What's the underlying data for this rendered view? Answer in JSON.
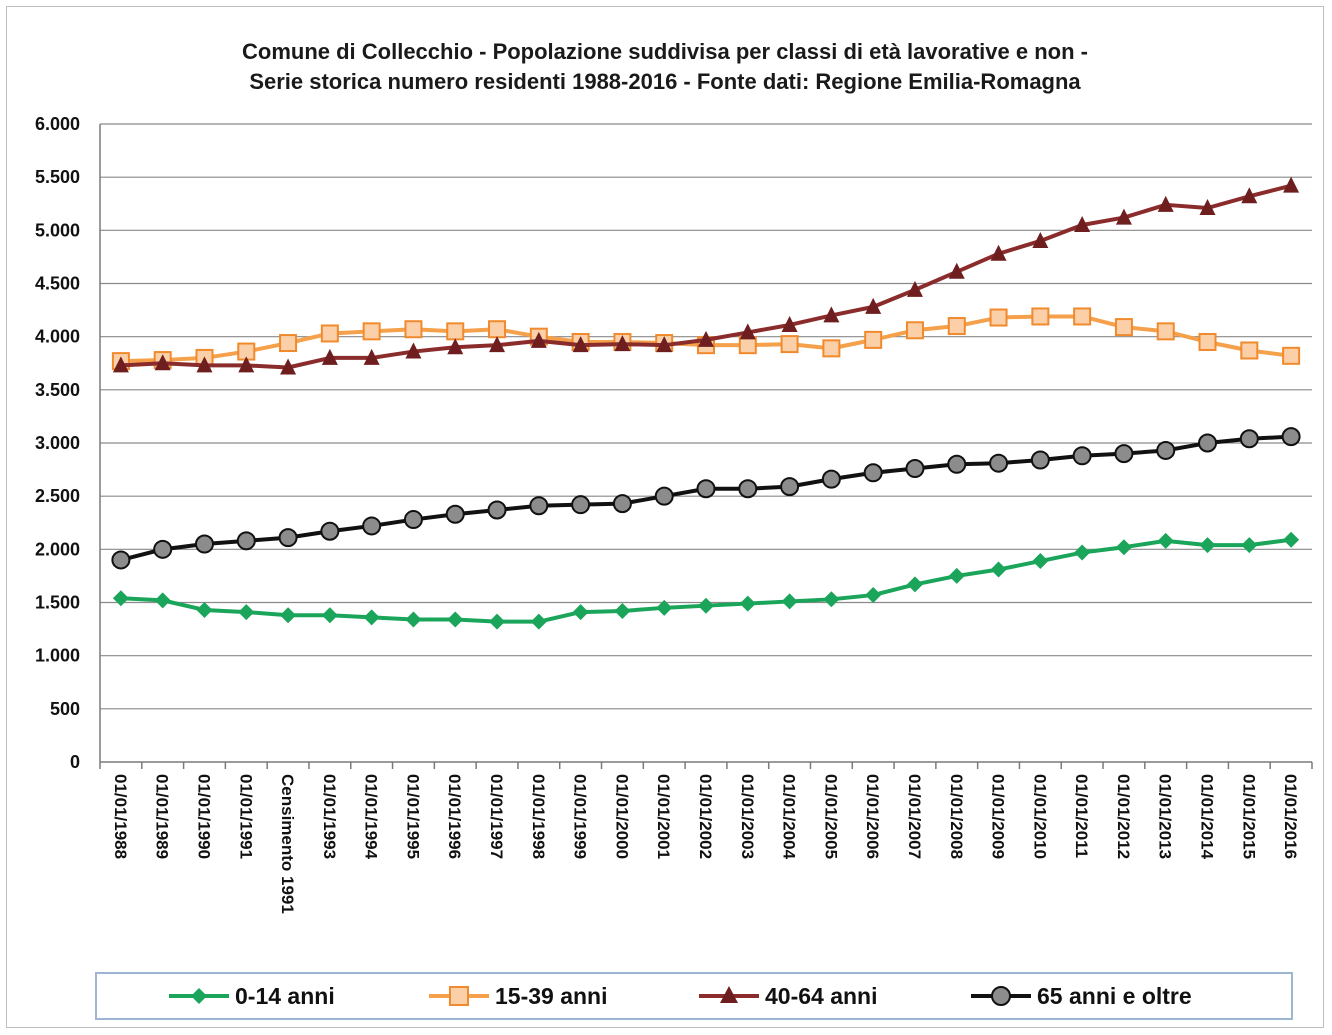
{
  "chart_data": {
    "type": "line",
    "title_line1": "Comune di Collecchio - Popolazione  suddivisa per classi di età lavorative e non -",
    "title_line2": "Serie storica  numero residenti 1988-2016 - Fonte dati: Regione Emilia-Romagna",
    "categories": [
      "01/01/1988",
      "01/01/1989",
      "01/01/1990",
      "01/01/1991",
      "Censimento 1991",
      "01/01/1993",
      "01/01/1994",
      "01/01/1995",
      "01/01/1996",
      "01/01/1997",
      "01/01/1998",
      "01/01/1999",
      "01/01/2000",
      "01/01/2001",
      "01/01/2002",
      "01/01/2003",
      "01/01/2004",
      "01/01/2005",
      "01/01/2006",
      "01/01/2007",
      "01/01/2008",
      "01/01/2009",
      "01/01/2010",
      "01/01/2011",
      "01/01/2012",
      "01/01/2013",
      "01/01/2014",
      "01/01/2015",
      "01/01/2016"
    ],
    "ylim": [
      0,
      6000
    ],
    "yticks": [
      0,
      500,
      1000,
      1500,
      2000,
      2500,
      3000,
      3500,
      4000,
      4500,
      5000,
      5500,
      6000
    ],
    "ytick_labels": [
      "0",
      "500",
      "1.000",
      "1.500",
      "2.000",
      "2.500",
      "3.000",
      "3.500",
      "4.000",
      "4.500",
      "5.000",
      "5.500",
      "6.000"
    ],
    "grid": true,
    "legend_position": "bottom",
    "series": [
      {
        "name": "0-14 anni",
        "color": "#1aa55a",
        "marker": "diamond",
        "values": [
          1540,
          1520,
          1430,
          1410,
          1380,
          1380,
          1360,
          1340,
          1340,
          1320,
          1320,
          1410,
          1420,
          1450,
          1470,
          1490,
          1510,
          1530,
          1570,
          1670,
          1750,
          1810,
          1890,
          1970,
          2020,
          2080,
          2040,
          2040,
          2090
        ]
      },
      {
        "name": "15-39 anni",
        "color": "#f5a04a",
        "marker": "square",
        "values": [
          3770,
          3780,
          3800,
          3860,
          3940,
          4030,
          4050,
          4070,
          4050,
          4070,
          4000,
          3950,
          3950,
          3940,
          3920,
          3920,
          3930,
          3890,
          3970,
          4060,
          4100,
          4180,
          4190,
          4190,
          4090,
          4050,
          3950,
          3870,
          3820
        ]
      },
      {
        "name": "40-64 anni",
        "color": "#8b2c2c",
        "marker": "triangle",
        "values": [
          3730,
          3750,
          3730,
          3730,
          3710,
          3800,
          3800,
          3860,
          3900,
          3920,
          3960,
          3920,
          3930,
          3920,
          3970,
          4040,
          4110,
          4200,
          4280,
          4440,
          4610,
          4780,
          4900,
          5050,
          5120,
          5240,
          5210,
          5320,
          5420
        ]
      },
      {
        "name": "65 anni e oltre",
        "color": "#111111",
        "marker": "circle",
        "values": [
          1900,
          2000,
          2050,
          2080,
          2110,
          2170,
          2220,
          2280,
          2330,
          2370,
          2410,
          2420,
          2430,
          2500,
          2570,
          2570,
          2590,
          2660,
          2720,
          2760,
          2800,
          2810,
          2840,
          2880,
          2900,
          2930,
          3000,
          3040,
          3060
        ]
      }
    ]
  }
}
